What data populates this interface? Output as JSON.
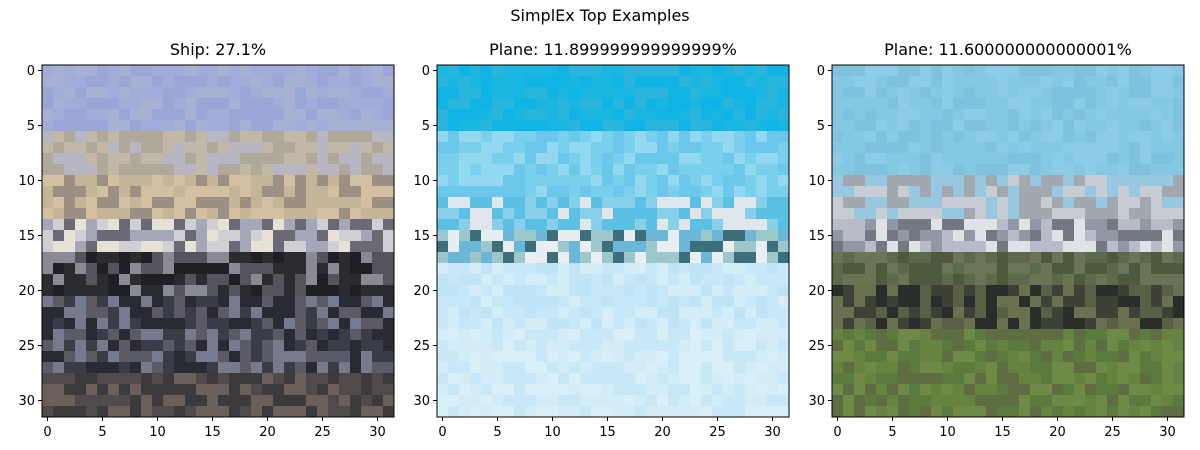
{
  "figure": {
    "suptitle": "SimplEx Top Examples"
  },
  "chart_data": [
    {
      "type": "image",
      "title": "Ship: 27.1%",
      "image_size": [
        32,
        32
      ],
      "xlim": [
        -0.5,
        31.5
      ],
      "ylim": [
        31.5,
        -0.5
      ],
      "xticks": [
        0,
        5,
        10,
        15,
        20,
        25,
        30
      ],
      "yticks": [
        0,
        5,
        10,
        15,
        20,
        25,
        30
      ],
      "content": "pixelated photo of a ship in a harbor",
      "bands": [
        {
          "rows": [
            0,
            6
          ],
          "colors": [
            "#9aa6d6",
            "#a2acd8",
            "#a8b0d4"
          ]
        },
        {
          "rows": [
            6,
            10
          ],
          "colors": [
            "#b7b6c2",
            "#c2b8a8",
            "#b0a89a"
          ]
        },
        {
          "rows": [
            10,
            14
          ],
          "colors": [
            "#d2c0a0",
            "#9c8f84",
            "#c4b498"
          ]
        },
        {
          "rows": [
            14,
            17
          ],
          "colors": [
            "#e6e2d6",
            "#cfcfd4",
            "#a5a7b8",
            "#6b6976"
          ]
        },
        {
          "rows": [
            17,
            21
          ],
          "colors": [
            "#2b2b30",
            "#55545c",
            "#8b8a94",
            "#1f1f26"
          ]
        },
        {
          "rows": [
            21,
            28
          ],
          "colors": [
            "#3a3c48",
            "#767a8c",
            "#5c5a66",
            "#2a2a34"
          ]
        },
        {
          "rows": [
            28,
            32
          ],
          "colors": [
            "#3d3a3e",
            "#514a4c",
            "#6b5f5a"
          ]
        }
      ]
    },
    {
      "type": "image",
      "title": "Plane: 11.899999999999999%",
      "image_size": [
        32,
        32
      ],
      "xlim": [
        -0.5,
        31.5
      ],
      "ylim": [
        31.5,
        -0.5
      ],
      "xticks": [
        0,
        5,
        10,
        15,
        20,
        25,
        30
      ],
      "yticks": [
        0,
        5,
        10,
        15,
        20,
        25,
        30
      ],
      "content": "pixelated photo of a blue-tailed airplane in the sky",
      "bands": [
        {
          "rows": [
            0,
            6
          ],
          "colors": [
            "#10b4e4",
            "#18b6e0",
            "#2ab6dc"
          ]
        },
        {
          "rows": [
            6,
            12
          ],
          "colors": [
            "#78d0ec",
            "#92d8f0",
            "#6cc8ea"
          ]
        },
        {
          "rows": [
            12,
            15
          ],
          "colors": [
            "#88d0ea",
            "#dfe6ec",
            "#5cc0e4"
          ]
        },
        {
          "rows": [
            15,
            18
          ],
          "colors": [
            "#9cc8cc",
            "#3d6f7a",
            "#e8eef2",
            "#6cb6d8"
          ]
        },
        {
          "rows": [
            18,
            24
          ],
          "colors": [
            "#c6e8f8",
            "#bfe4f6",
            "#d4eef8"
          ]
        },
        {
          "rows": [
            24,
            32
          ],
          "colors": [
            "#c8e8f8",
            "#d2ecf8",
            "#daf0f8"
          ]
        }
      ]
    },
    {
      "type": "image",
      "title": "Plane: 11.600000000000001%",
      "image_size": [
        32,
        32
      ],
      "xlim": [
        -0.5,
        31.5
      ],
      "ylim": [
        31.5,
        -0.5
      ],
      "xticks": [
        0,
        5,
        10,
        15,
        20,
        25,
        30
      ],
      "yticks": [
        0,
        5,
        10,
        15,
        20,
        25,
        30
      ],
      "content": "pixelated photo of an airplane on a grass airfield",
      "bands": [
        {
          "rows": [
            0,
            10
          ],
          "colors": [
            "#84c8e4",
            "#8ccce6",
            "#7ec2e0"
          ]
        },
        {
          "rows": [
            10,
            14
          ],
          "colors": [
            "#98c8e0",
            "#a2a8b0",
            "#c8ccd4"
          ]
        },
        {
          "rows": [
            14,
            17
          ],
          "colors": [
            "#b8bcc8",
            "#747882",
            "#e0e2e8",
            "#8f98a4"
          ]
        },
        {
          "rows": [
            17,
            20
          ],
          "colors": [
            "#5c6a4c",
            "#4e5a3e",
            "#6c7456"
          ]
        },
        {
          "rows": [
            20,
            24
          ],
          "colors": [
            "#5a6046",
            "#3e4236",
            "#6a7050",
            "#2a2e2a"
          ]
        },
        {
          "rows": [
            24,
            32
          ],
          "colors": [
            "#5a7a3e",
            "#66843f",
            "#6f8a46",
            "#5e6e42"
          ]
        }
      ]
    }
  ]
}
